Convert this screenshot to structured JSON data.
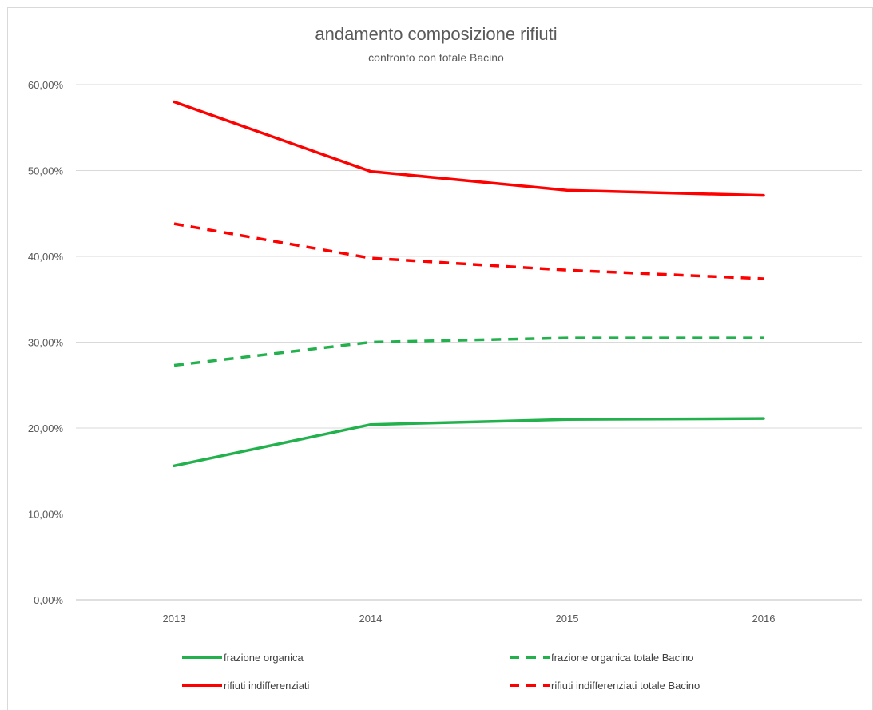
{
  "chart_data": {
    "type": "line",
    "title": "andamento composizione rifiuti",
    "subtitle": "confronto con totale Bacino",
    "xlabel": "",
    "ylabel": "",
    "categories": [
      "2013",
      "2014",
      "2015",
      "2016"
    ],
    "ylim": [
      0,
      60
    ],
    "yticks": [
      0,
      10,
      20,
      30,
      40,
      50,
      60
    ],
    "ytick_labels": [
      "0,00%",
      "10,00%",
      "20,00%",
      "30,00%",
      "40,00%",
      "50,00%",
      "60,00%"
    ],
    "grid": true,
    "legend_position": "bottom",
    "series": [
      {
        "name": "frazione organica",
        "values": [
          15.6,
          20.4,
          21.0,
          21.1
        ],
        "color": "#22b14c",
        "style": "solid"
      },
      {
        "name": "frazione organica totale Bacino",
        "values": [
          27.3,
          30.0,
          30.5,
          30.5
        ],
        "color": "#22b14c",
        "style": "dashed"
      },
      {
        "name": "rifiuti indifferenziati",
        "values": [
          58.0,
          49.9,
          47.7,
          47.1
        ],
        "color": "#ff0000",
        "style": "solid"
      },
      {
        "name": "rifiuti indifferenziati totale Bacino",
        "values": [
          43.8,
          39.8,
          38.4,
          37.4
        ],
        "color": "#ff0000",
        "style": "dashed"
      }
    ]
  }
}
